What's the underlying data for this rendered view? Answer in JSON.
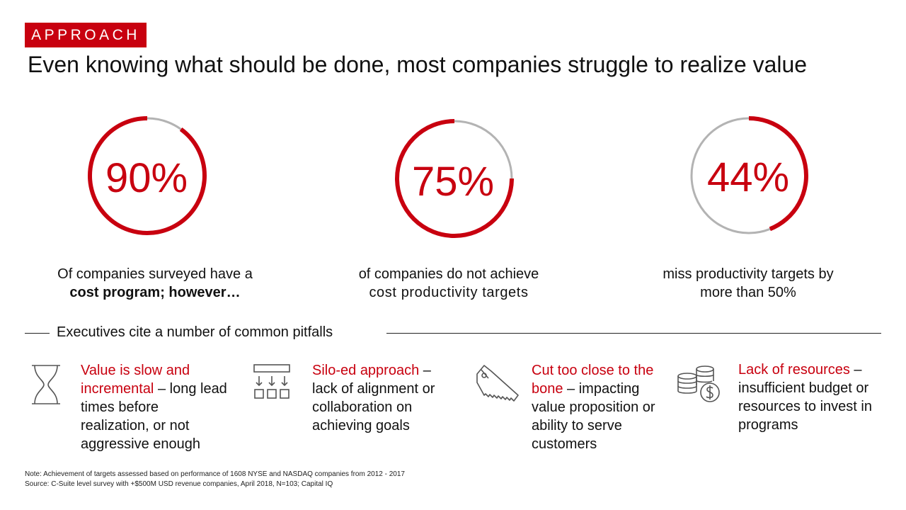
{
  "header": {
    "tag": "APPROACH",
    "title": "Even knowing what should be done, most companies struggle to realize value"
  },
  "colors": {
    "accent": "#c8000f",
    "track": "#b3b3b3"
  },
  "chart_data": {
    "type": "donut",
    "items": [
      {
        "label": "90%",
        "value": 90
      },
      {
        "label": "75%",
        "value": 75
      },
      {
        "label": "44%",
        "value": 44
      }
    ]
  },
  "stats": [
    {
      "text": "Of companies surveyed have a",
      "bold": "cost program; however…"
    },
    {
      "text": "of companies do not achieve",
      "line2": "cost productivity targets"
    },
    {
      "text": "miss productivity targets by",
      "line2": "more than 50%"
    }
  ],
  "pitfalls": {
    "heading": "Executives cite a number of common pitfalls",
    "items": [
      {
        "icon": "hourglass-icon",
        "highlight": "Value is slow and incremental",
        "rest": " – long lead times before realization, or not aggressive enough"
      },
      {
        "icon": "silo-flow-icon",
        "highlight": "Silo-ed approach",
        "rest": " – lack of alignment or collaboration on achieving goals"
      },
      {
        "icon": "saw-icon",
        "highlight": "Cut too close to the bone",
        "rest": " – impacting value proposition or ability to serve customers"
      },
      {
        "icon": "coins-dollar-icon",
        "highlight": "Lack of resources",
        "rest": " – insufficient budget or resources to invest in programs"
      }
    ]
  },
  "footnotes": {
    "note": "Note: Achievement of targets assessed based on performance of 1608 NYSE and NASDAQ companies from 2012 - 2017",
    "source": "Source: C-Suite level survey  with +$500M USD revenue companies, April 2018, N=103; Capital IQ"
  }
}
